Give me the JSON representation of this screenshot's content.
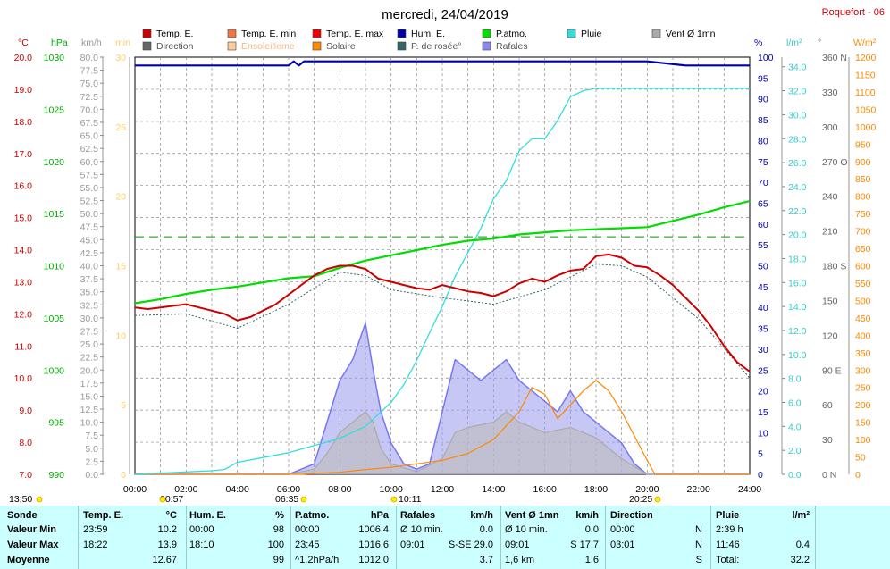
{
  "title": "mercredi, 24/04/2019",
  "station": "Roquefort - 06",
  "colors": {
    "temp": "#cc0000",
    "hum": "#0000aa",
    "patm": "#00dd00",
    "rain": "#33dddd",
    "solar": "#ff8800",
    "gust": "#7777ee",
    "wind": "#aaaaaa",
    "direction": "#666666",
    "dewpoint": "#336666",
    "grid": "#888888",
    "ref": "#009900",
    "stats_bg": "#ccffff"
  },
  "legend": [
    {
      "label": "Temp. E.",
      "color": "#cc0000"
    },
    {
      "label": "Temp. E. min",
      "color": "#ee7744"
    },
    {
      "label": "Temp. E. max",
      "color": "#ee0000"
    },
    {
      "label": "Hum. E.",
      "color": "#0000aa"
    },
    {
      "label": "P.atmo.",
      "color": "#00dd00"
    },
    {
      "label": "Pluie",
      "color": "#33dddd"
    },
    {
      "label": "Vent Ø 1mn",
      "color": "#aaaaaa"
    },
    {
      "label": "Direction",
      "color": "#666666"
    },
    {
      "label": "Ensoleilleme",
      "color": "#ffcc99"
    },
    {
      "label": "Solaire",
      "color": "#ff8800"
    },
    {
      "label": "P. de rosée°",
      "color": "#336666"
    },
    {
      "label": "Rafales",
      "color": "#8888ee"
    }
  ],
  "axes": {
    "temp": {
      "unit": "°C",
      "ticks": [
        "20.0",
        "19.0",
        "18.0",
        "17.0",
        "16.0",
        "15.0",
        "14.0",
        "13.0",
        "12.0",
        "11.0",
        "10.0",
        "9.0",
        "8.0",
        "7.0"
      ]
    },
    "hpa": {
      "unit": "hPa",
      "ticks": [
        "1030",
        "1025",
        "1020",
        "1015",
        "1010",
        "1005",
        "1000",
        "995",
        "990"
      ]
    },
    "kmh": {
      "unit": "km/h",
      "ticks": [
        "80.0",
        "77.5",
        "75.0",
        "72.5",
        "70.0",
        "67.5",
        "65.0",
        "62.5",
        "60.0",
        "57.5",
        "55.0",
        "52.5",
        "50.0",
        "47.5",
        "45.0",
        "42.5",
        "40.0",
        "37.5",
        "35.0",
        "32.5",
        "30.0",
        "27.5",
        "25.0",
        "22.5",
        "20.0",
        "17.5",
        "15.0",
        "12.5",
        "10.0",
        "7.5",
        "5.0",
        "2.5",
        "0.0"
      ]
    },
    "min": {
      "unit": "min",
      "ticks": [
        "30",
        "25",
        "20",
        "15",
        "10",
        "5",
        "0"
      ]
    },
    "pct": {
      "unit": "%",
      "ticks": [
        "100",
        "95",
        "90",
        "85",
        "80",
        "75",
        "70",
        "65",
        "60",
        "55",
        "50",
        "45",
        "40",
        "35",
        "30",
        "25",
        "20",
        "15",
        "10",
        "5",
        "0"
      ]
    },
    "rain": {
      "unit": "l/m²",
      "ticks": [
        "34.0",
        "32.0",
        "30.0",
        "28.0",
        "26.0",
        "24.0",
        "22.0",
        "20.0",
        "18.0",
        "16.0",
        "14.0",
        "12.0",
        "10.0",
        "8.0",
        "6.0",
        "4.0",
        "2.0",
        "0.0"
      ]
    },
    "deg": {
      "unit": "°",
      "ticks": [
        "360 N",
        "330",
        "300",
        "270 O",
        "240",
        "210",
        "180 S",
        "150",
        "120",
        "90 E",
        "60",
        "30",
        "0 N"
      ]
    },
    "wm2": {
      "unit": "W/m²",
      "ticks": [
        "1200",
        "1150",
        "1100",
        "1050",
        "1000",
        "950",
        "900",
        "850",
        "800",
        "750",
        "700",
        "650",
        "600",
        "550",
        "500",
        "450",
        "400",
        "350",
        "300",
        "250",
        "200",
        "150",
        "100",
        "50",
        "0"
      ]
    },
    "time": [
      "00:00",
      "02:00",
      "04:00",
      "06:00",
      "08:00",
      "10:00",
      "12:00",
      "14:00",
      "16:00",
      "18:00",
      "20:00",
      "22:00",
      "24:00"
    ]
  },
  "markers": {
    "sunrise": "06:35",
    "sunset": "20:25",
    "sun_start": "13:50",
    "m1": "00:57",
    "m2": "10:11"
  },
  "chart_data": {
    "type": "line",
    "x_unit": "hour",
    "series": [
      {
        "name": "Temp. E.",
        "axis": "temp",
        "x": [
          0,
          0.5,
          1,
          1.5,
          2,
          2.5,
          3,
          3.5,
          4,
          4.5,
          5,
          5.5,
          6,
          6.5,
          7,
          7.5,
          8,
          8.5,
          9,
          9.5,
          10,
          10.5,
          11,
          11.5,
          12,
          12.5,
          13,
          13.5,
          14,
          14.5,
          15,
          15.5,
          16,
          16.5,
          17,
          17.5,
          18,
          18.5,
          19,
          19.5,
          20,
          20.5,
          21,
          21.5,
          22,
          22.5,
          23,
          23.5,
          24
        ],
        "y": [
          12.2,
          12.15,
          12.2,
          12.25,
          12.3,
          12.2,
          12.1,
          12.0,
          11.8,
          11.9,
          12.1,
          12.3,
          12.6,
          12.9,
          13.2,
          13.4,
          13.5,
          13.5,
          13.4,
          13.1,
          13.0,
          12.9,
          12.8,
          12.75,
          12.9,
          12.8,
          12.7,
          12.65,
          12.55,
          12.7,
          12.95,
          13.1,
          13.0,
          13.2,
          13.35,
          13.4,
          13.8,
          13.85,
          13.75,
          13.5,
          13.45,
          13.2,
          12.9,
          12.5,
          12.1,
          11.6,
          11.0,
          10.5,
          10.2
        ]
      },
      {
        "name": "P. de rosée°",
        "axis": "temp",
        "x": [
          0,
          2,
          4,
          6,
          8,
          9,
          10,
          12,
          14,
          16,
          18,
          19,
          20,
          22,
          24
        ],
        "y": [
          11.95,
          12.0,
          11.55,
          12.3,
          13.3,
          13.2,
          12.75,
          12.5,
          12.3,
          12.75,
          13.55,
          13.5,
          13.15,
          11.85,
          10.0
        ]
      },
      {
        "name": "Hum. E.",
        "axis": "pct",
        "x": [
          0,
          6,
          6.2,
          6.4,
          6.6,
          7,
          12,
          18,
          18.2,
          20,
          21.5,
          24
        ],
        "y": [
          98,
          98,
          99,
          98,
          99,
          99,
          99,
          99,
          99,
          99,
          98,
          98
        ]
      },
      {
        "name": "P.atmo.",
        "axis": "hpa",
        "x": [
          0,
          1,
          2,
          3,
          4,
          5,
          6,
          7,
          8,
          9,
          10,
          11,
          12,
          13,
          14,
          15,
          16,
          17,
          18,
          19,
          20,
          21,
          22,
          23,
          24
        ],
        "y": [
          1006.4,
          1006.8,
          1007.3,
          1007.7,
          1008.0,
          1008.4,
          1008.8,
          1009.0,
          1009.8,
          1010.5,
          1011.0,
          1011.5,
          1012.0,
          1012.4,
          1012.6,
          1013.0,
          1013.2,
          1013.4,
          1013.5,
          1013.6,
          1013.7,
          1014.3,
          1014.9,
          1015.6,
          1016.2
        ]
      },
      {
        "name": "Pluie",
        "axis": "rain",
        "x": [
          0,
          1,
          2,
          3,
          3.5,
          4,
          5,
          6,
          7,
          8,
          9,
          10,
          10.5,
          11,
          11.5,
          12,
          12.5,
          13,
          13.5,
          14,
          14.5,
          15,
          15.5,
          16,
          16.5,
          17,
          17.5,
          18,
          19,
          20,
          21,
          22,
          23,
          24
        ],
        "y": [
          0,
          0.1,
          0.2,
          0.3,
          0.4,
          1.0,
          1.4,
          1.8,
          2.4,
          3.0,
          4.0,
          6.0,
          7.5,
          9.5,
          11.8,
          14.0,
          16.5,
          18.5,
          20.5,
          23.0,
          24.5,
          27.0,
          28.0,
          28.0,
          29.5,
          31.5,
          32.0,
          32.2,
          32.2,
          32.2,
          32.2,
          32.2,
          32.2,
          32.2
        ]
      },
      {
        "name": "Rafales",
        "axis": "kmh",
        "x": [
          0,
          6,
          7,
          7.5,
          8,
          8.5,
          9,
          9.3,
          9.6,
          10,
          10.5,
          11,
          11.5,
          12,
          12.5,
          13,
          13.5,
          14,
          14.5,
          15,
          15.5,
          16,
          16.5,
          17,
          17.5,
          18,
          18.5,
          19,
          19.5,
          20,
          21,
          22,
          24
        ],
        "y": [
          0,
          0,
          2,
          10,
          18,
          22,
          29,
          20,
          12,
          6,
          2,
          1,
          2,
          12,
          22,
          20,
          18,
          20,
          22,
          18,
          16,
          14,
          12,
          16,
          12,
          10,
          8,
          6,
          2,
          0,
          0,
          0,
          0
        ]
      },
      {
        "name": "Vent Ø 1mn",
        "axis": "kmh",
        "x": [
          0,
          6,
          7,
          7.5,
          8,
          8.5,
          9,
          9.3,
          9.6,
          10,
          11,
          12,
          12.5,
          13,
          14,
          14.5,
          15,
          16,
          17,
          17.5,
          18,
          18.5,
          19,
          20,
          24
        ],
        "y": [
          0,
          0,
          1,
          4,
          8,
          10,
          12,
          10,
          5,
          2,
          0.5,
          3,
          8,
          9,
          10,
          12,
          10,
          8,
          9,
          8,
          7,
          5,
          3,
          0,
          0
        ]
      },
      {
        "name": "Solaire",
        "axis": "wm2",
        "x": [
          0,
          6.5,
          7,
          8,
          9,
          10,
          11,
          12,
          13,
          14,
          15,
          15.5,
          16,
          16.5,
          17,
          17.5,
          18,
          18.5,
          19,
          19.5,
          20,
          20.3,
          24
        ],
        "y": [
          0,
          0,
          3,
          6,
          14,
          20,
          30,
          40,
          60,
          100,
          180,
          250,
          230,
          160,
          200,
          240,
          270,
          240,
          180,
          110,
          40,
          0,
          0
        ]
      }
    ],
    "xlim": [
      0,
      24
    ],
    "ylim_temp": [
      7,
      20
    ],
    "ylim_hpa": [
      990,
      1030
    ],
    "ylim_kmh": [
      0,
      80
    ],
    "ylim_pct": [
      0,
      100
    ],
    "ylim_rain": [
      0,
      34.8
    ],
    "ylim_wm2": [
      0,
      1200
    ],
    "ref_line_temp": 14.4,
    "grid": true
  },
  "stats": {
    "header": [
      "Sonde",
      "Temp. E.",
      "°C",
      "Hum. E.",
      "%",
      "P.atmo.",
      "hPa",
      "Rafales",
      "km/h",
      "Vent Ø 1mn",
      "km/h",
      "Direction",
      "Pluie",
      "l/m²"
    ],
    "min": [
      "Valeur Min",
      "23:59",
      "10.2",
      "00:00",
      "98",
      "00:00",
      "1006.4",
      "Ø 10 min.",
      "0.0",
      "Ø 10 min.",
      "0.0",
      "00:00",
      "N",
      "2:39 h",
      ""
    ],
    "max": [
      "Valeur Max",
      "18:22",
      "13.9",
      "18:10",
      "100",
      "23:45",
      "1016.6",
      "09:01",
      "S-SE 29.0",
      "09:01",
      "S 17.7",
      "03:01",
      "N",
      "11:46",
      "0.4"
    ],
    "mean": [
      "Moyenne",
      "",
      "12.67",
      "",
      "99",
      "^1.2hPa/h",
      "1012.0",
      "",
      "3.7",
      "1,6 km",
      "1.6",
      "",
      "S",
      "Total:",
      "32.2"
    ]
  }
}
